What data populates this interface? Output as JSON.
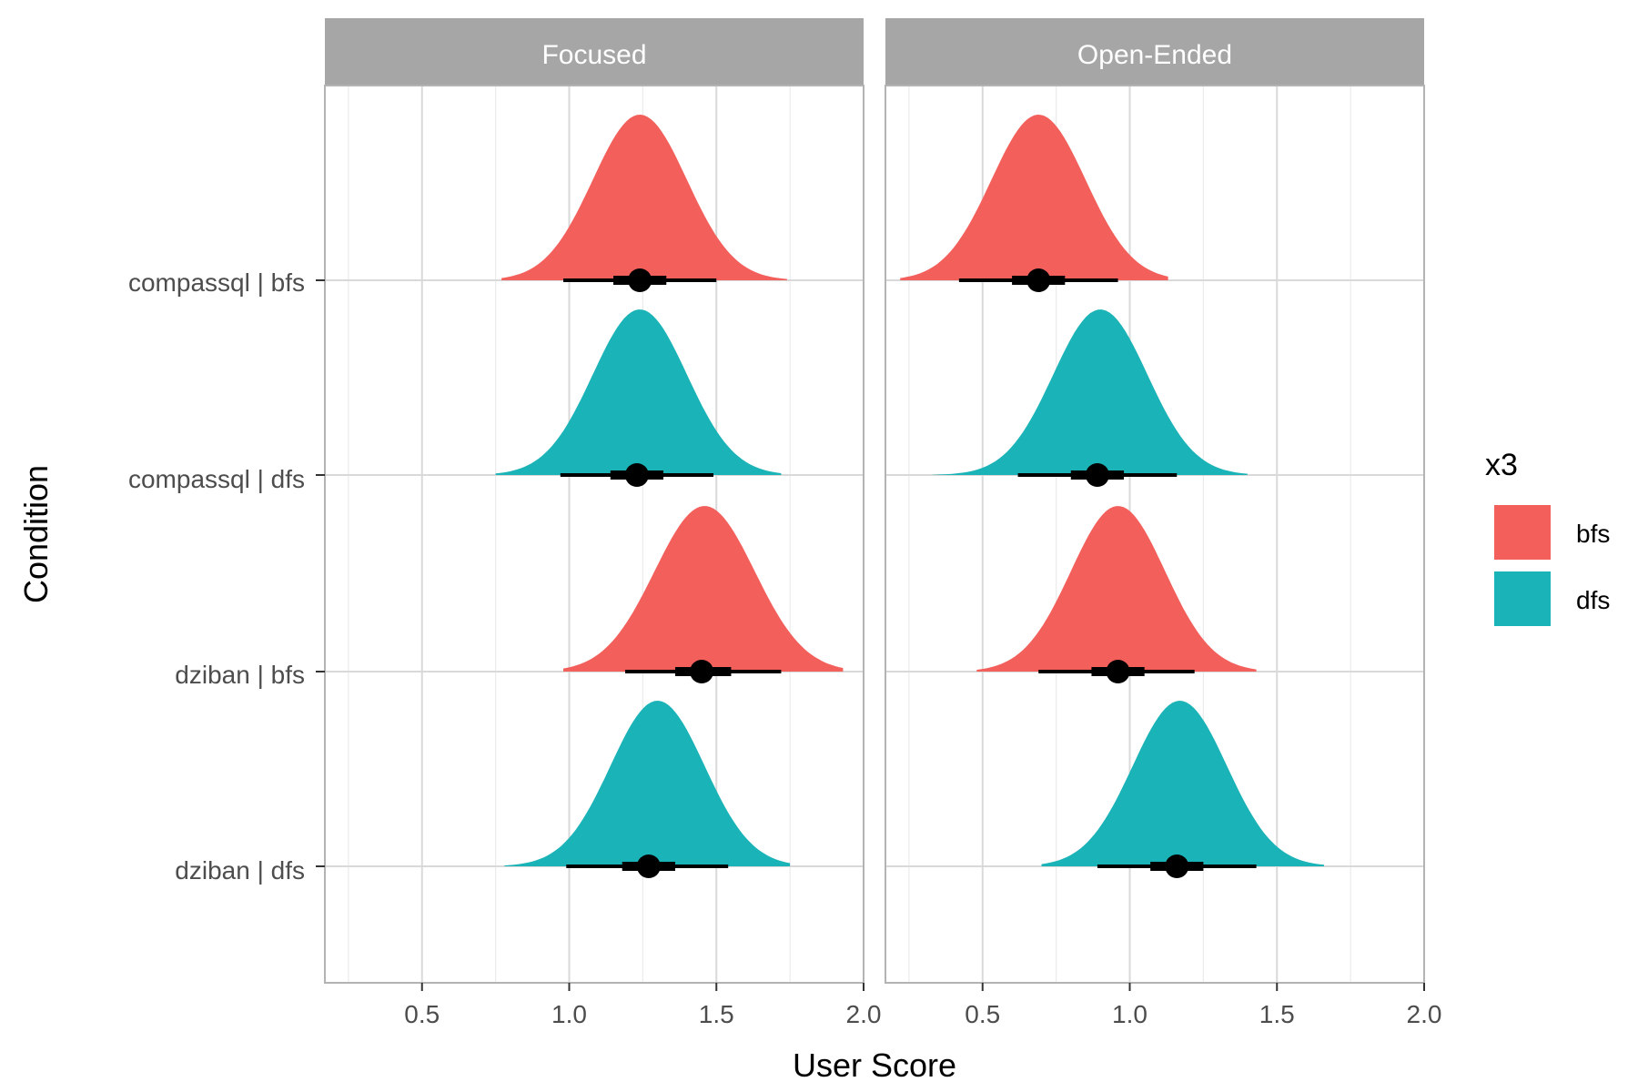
{
  "chart_data": {
    "type": "density-interval",
    "xlabel": "User Score",
    "ylabel": "Condition",
    "xlim": [
      0.17,
      2.0
    ],
    "x_ticks": [
      0.5,
      1.0,
      1.5,
      2.0
    ],
    "x_tick_labels": [
      "0.5",
      "1.0",
      "1.5",
      "2.0"
    ],
    "grid": true,
    "categories": [
      "compassql | bfs",
      "compassql | dfs",
      "dziban | bfs",
      "dziban | dfs"
    ],
    "legend": {
      "title": "x3",
      "placement": "right",
      "entries": [
        {
          "label": "bfs",
          "color": "#F3605C"
        },
        {
          "label": "dfs",
          "color": "#1AB3B7"
        }
      ]
    },
    "panels": [
      {
        "name": "Focused",
        "rows": [
          {
            "condition": "compassql | bfs",
            "group": "bfs",
            "median": 1.24,
            "interval_66": [
              1.15,
              1.33
            ],
            "interval_95": [
              0.98,
              1.5
            ],
            "range": [
              0.77,
              1.74
            ],
            "peak": 1.24,
            "sd": 0.16
          },
          {
            "condition": "compassql | dfs",
            "group": "dfs",
            "median": 1.23,
            "interval_66": [
              1.14,
              1.32
            ],
            "interval_95": [
              0.97,
              1.49
            ],
            "range": [
              0.75,
              1.72
            ],
            "peak": 1.24,
            "sd": 0.16
          },
          {
            "condition": "dziban | bfs",
            "group": "bfs",
            "median": 1.45,
            "interval_66": [
              1.36,
              1.55
            ],
            "interval_95": [
              1.19,
              1.72
            ],
            "range": [
              0.98,
              1.93
            ],
            "peak": 1.46,
            "sd": 0.17
          },
          {
            "condition": "dziban | dfs",
            "group": "dfs",
            "median": 1.27,
            "interval_66": [
              1.18,
              1.36
            ],
            "interval_95": [
              0.99,
              1.54
            ],
            "range": [
              0.78,
              1.75
            ],
            "peak": 1.3,
            "sd": 0.16
          }
        ]
      },
      {
        "name": "Open-Ended",
        "rows": [
          {
            "condition": "compassql | bfs",
            "group": "bfs",
            "median": 0.69,
            "interval_66": [
              0.6,
              0.78
            ],
            "interval_95": [
              0.42,
              0.96
            ],
            "range": [
              0.22,
              1.13
            ],
            "peak": 0.69,
            "sd": 0.16
          },
          {
            "condition": "compassql | dfs",
            "group": "dfs",
            "median": 0.89,
            "interval_66": [
              0.8,
              0.98
            ],
            "interval_95": [
              0.62,
              1.16
            ],
            "range": [
              0.33,
              1.4
            ],
            "peak": 0.9,
            "sd": 0.16
          },
          {
            "condition": "dziban | bfs",
            "group": "bfs",
            "median": 0.96,
            "interval_66": [
              0.87,
              1.05
            ],
            "interval_95": [
              0.69,
              1.22
            ],
            "range": [
              0.48,
              1.43
            ],
            "peak": 0.96,
            "sd": 0.16
          },
          {
            "condition": "dziban | dfs",
            "group": "dfs",
            "median": 1.16,
            "interval_66": [
              1.07,
              1.25
            ],
            "interval_95": [
              0.89,
              1.43
            ],
            "range": [
              0.7,
              1.66
            ],
            "peak": 1.17,
            "sd": 0.16
          }
        ]
      }
    ]
  }
}
